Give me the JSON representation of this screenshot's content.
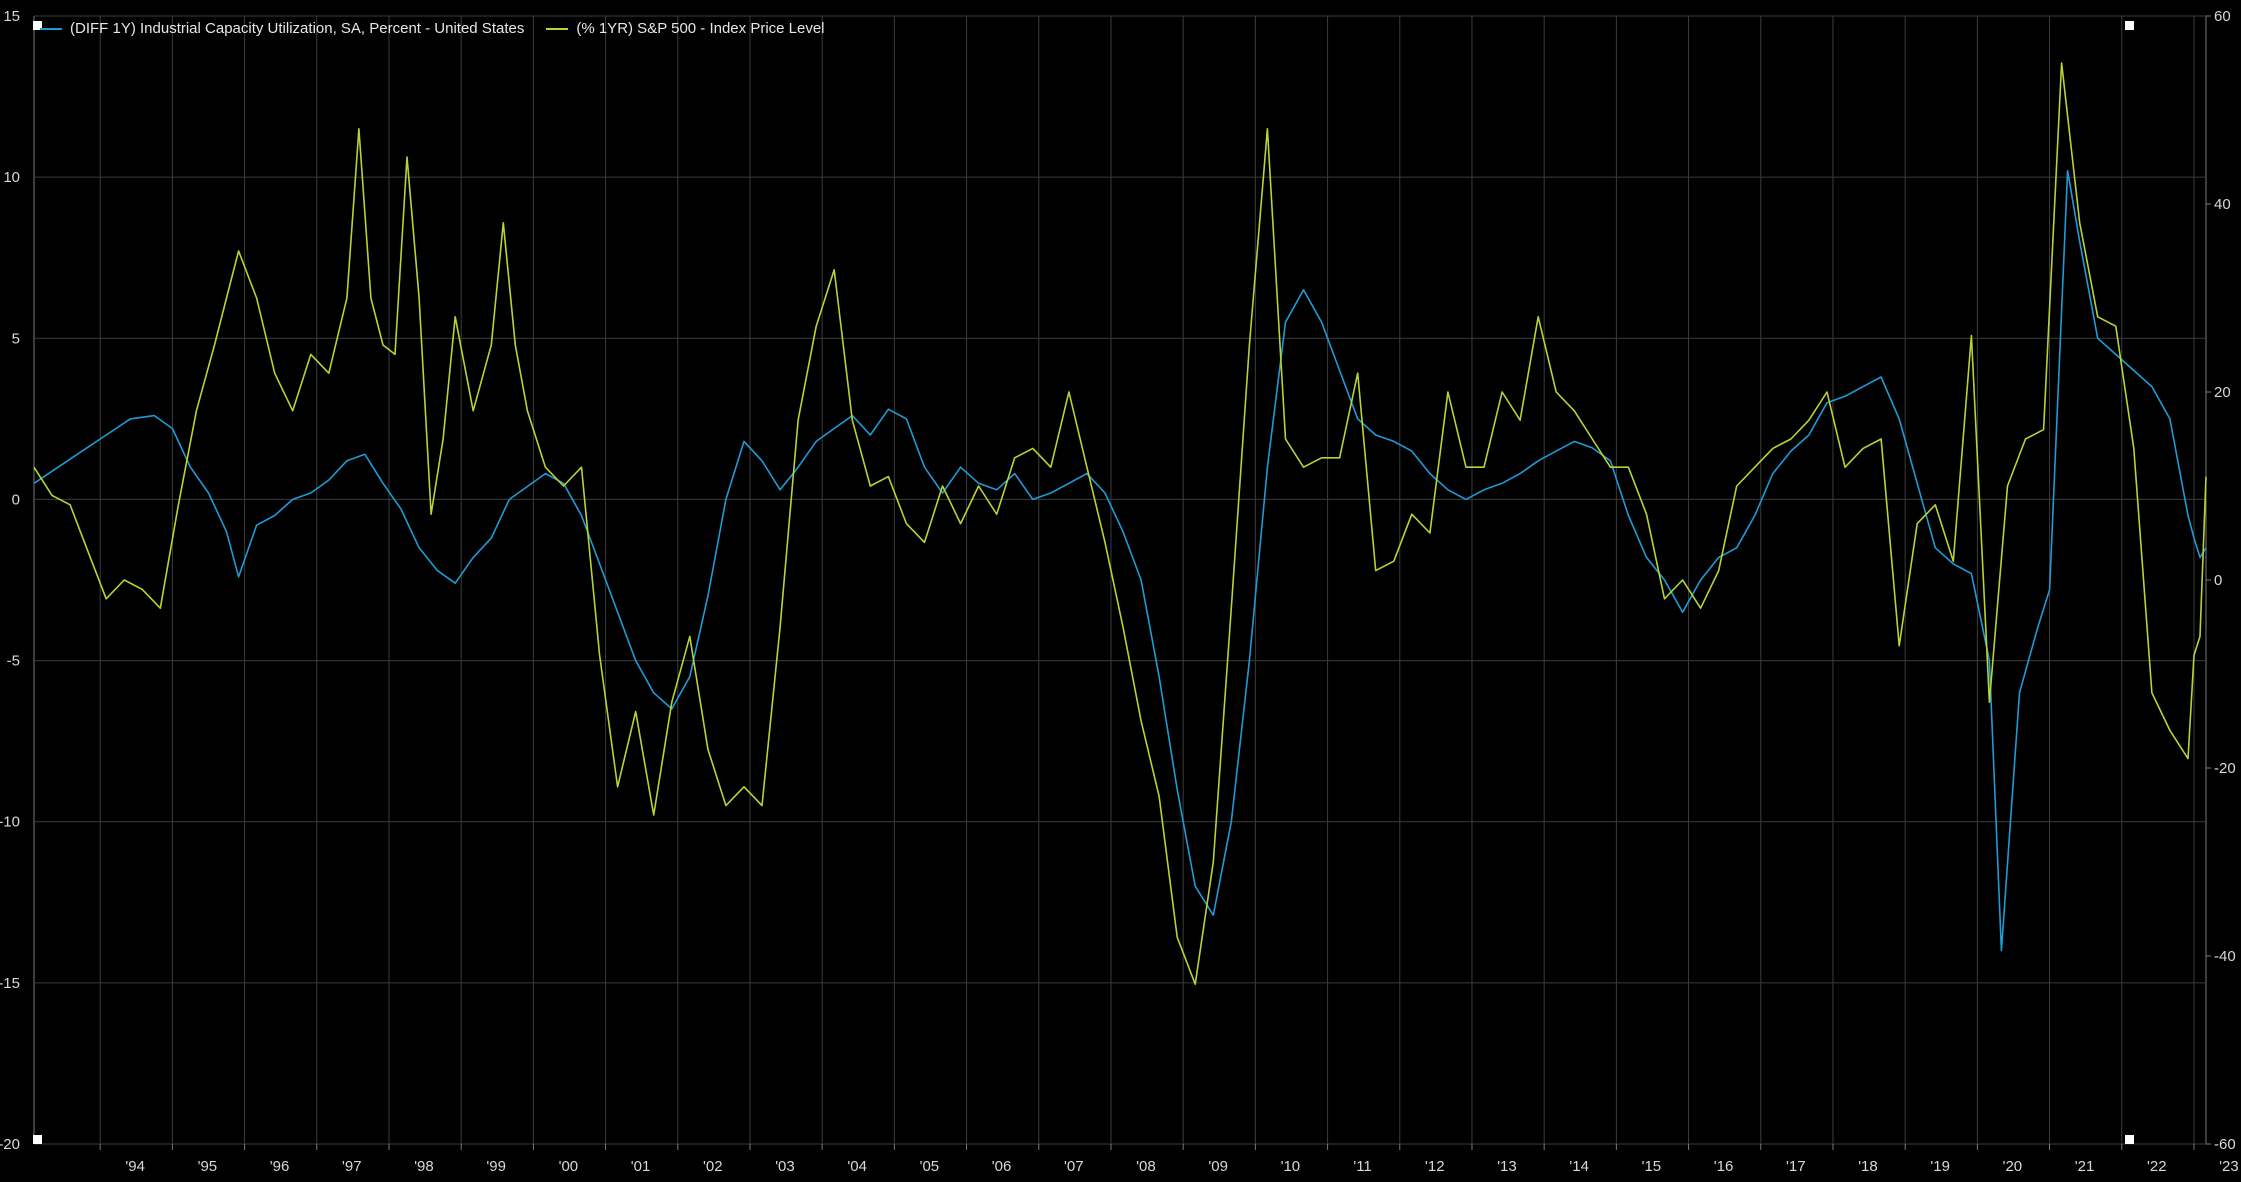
{
  "chart_data": {
    "type": "line",
    "title": "",
    "grid": true,
    "legend_placement": "top-left",
    "background": "#000000",
    "x_range": [
      "1993-02",
      "2023-03"
    ],
    "x_tick_labels": [
      "'94",
      "'95",
      "'96",
      "'97",
      "'98",
      "'99",
      "'00",
      "'01",
      "'02",
      "'03",
      "'04",
      "'05",
      "'06",
      "'07",
      "'08",
      "'09",
      "'10",
      "'11",
      "'12",
      "'13",
      "'14",
      "'15",
      "'16",
      "'17",
      "'18",
      "'19",
      "'20",
      "'21",
      "'22",
      "'23"
    ],
    "x_tick_years": [
      1994,
      1995,
      1996,
      1997,
      1998,
      1999,
      2000,
      2001,
      2002,
      2003,
      2004,
      2005,
      2006,
      2007,
      2008,
      2009,
      2010,
      2011,
      2012,
      2013,
      2014,
      2015,
      2016,
      2017,
      2018,
      2019,
      2020,
      2021,
      2022,
      2023
    ],
    "y_left": {
      "min": -20,
      "max": 15,
      "ticks": [
        15,
        10,
        5,
        0,
        -5,
        -10,
        -15,
        -20
      ],
      "tick_labels": [
        "15",
        "10",
        "5",
        "0",
        "-5",
        "-10",
        "-15",
        "-20"
      ]
    },
    "y_right": {
      "min": -60,
      "max": 60,
      "ticks": [
        60,
        40,
        20,
        0,
        -20,
        -40,
        -60
      ],
      "tick_labels": [
        "60",
        "40",
        "20",
        "0",
        "-20",
        "-40",
        "-60"
      ]
    },
    "series": [
      {
        "name": "(DIFF 1Y) Industrial Capacity Utilization, SA, Percent - United States",
        "axis": "left",
        "color": "#1e9bd7",
        "points": [
          [
            "1993-02",
            0.5
          ],
          [
            "1993-06",
            1.0
          ],
          [
            "1993-10",
            1.5
          ],
          [
            "1994-02",
            2.0
          ],
          [
            "1994-06",
            2.5
          ],
          [
            "1994-10",
            2.6
          ],
          [
            "1995-01",
            2.2
          ],
          [
            "1995-04",
            1.0
          ],
          [
            "1995-07",
            0.2
          ],
          [
            "1995-10",
            -1.0
          ],
          [
            "1995-12",
            -2.4
          ],
          [
            "1996-03",
            -0.8
          ],
          [
            "1996-06",
            -0.5
          ],
          [
            "1996-09",
            0.0
          ],
          [
            "1996-12",
            0.2
          ],
          [
            "1997-03",
            0.6
          ],
          [
            "1997-06",
            1.2
          ],
          [
            "1997-09",
            1.4
          ],
          [
            "1997-12",
            0.5
          ],
          [
            "1998-03",
            -0.3
          ],
          [
            "1998-06",
            -1.5
          ],
          [
            "1998-09",
            -2.2
          ],
          [
            "1998-12",
            -2.6
          ],
          [
            "1999-03",
            -1.8
          ],
          [
            "1999-06",
            -1.2
          ],
          [
            "1999-09",
            0.0
          ],
          [
            "1999-12",
            0.4
          ],
          [
            "2000-03",
            0.8
          ],
          [
            "2000-06",
            0.5
          ],
          [
            "2000-09",
            -0.5
          ],
          [
            "2000-12",
            -2.0
          ],
          [
            "2001-03",
            -3.5
          ],
          [
            "2001-06",
            -5.0
          ],
          [
            "2001-09",
            -6.0
          ],
          [
            "2001-12",
            -6.5
          ],
          [
            "2002-03",
            -5.5
          ],
          [
            "2002-06",
            -3.0
          ],
          [
            "2002-09",
            0.0
          ],
          [
            "2002-12",
            1.8
          ],
          [
            "2003-03",
            1.2
          ],
          [
            "2003-06",
            0.3
          ],
          [
            "2003-09",
            1.0
          ],
          [
            "2003-12",
            1.8
          ],
          [
            "2004-03",
            2.2
          ],
          [
            "2004-06",
            2.6
          ],
          [
            "2004-09",
            2.0
          ],
          [
            "2004-12",
            2.8
          ],
          [
            "2005-03",
            2.5
          ],
          [
            "2005-06",
            1.0
          ],
          [
            "2005-09",
            0.2
          ],
          [
            "2005-12",
            1.0
          ],
          [
            "2006-03",
            0.5
          ],
          [
            "2006-06",
            0.3
          ],
          [
            "2006-09",
            0.8
          ],
          [
            "2006-12",
            0.0
          ],
          [
            "2007-03",
            0.2
          ],
          [
            "2007-06",
            0.5
          ],
          [
            "2007-09",
            0.8
          ],
          [
            "2007-12",
            0.2
          ],
          [
            "2008-03",
            -1.0
          ],
          [
            "2008-06",
            -2.5
          ],
          [
            "2008-09",
            -5.5
          ],
          [
            "2008-12",
            -9.0
          ],
          [
            "2009-03",
            -12.0
          ],
          [
            "2009-06",
            -12.9
          ],
          [
            "2009-09",
            -10.0
          ],
          [
            "2009-12",
            -5.0
          ],
          [
            "2010-03",
            1.0
          ],
          [
            "2010-06",
            5.5
          ],
          [
            "2010-09",
            6.5
          ],
          [
            "2010-12",
            5.5
          ],
          [
            "2011-03",
            4.0
          ],
          [
            "2011-06",
            2.5
          ],
          [
            "2011-09",
            2.0
          ],
          [
            "2011-12",
            1.8
          ],
          [
            "2012-03",
            1.5
          ],
          [
            "2012-06",
            0.8
          ],
          [
            "2012-09",
            0.3
          ],
          [
            "2012-12",
            0.0
          ],
          [
            "2013-03",
            0.3
          ],
          [
            "2013-06",
            0.5
          ],
          [
            "2013-09",
            0.8
          ],
          [
            "2013-12",
            1.2
          ],
          [
            "2014-03",
            1.5
          ],
          [
            "2014-06",
            1.8
          ],
          [
            "2014-09",
            1.6
          ],
          [
            "2014-12",
            1.2
          ],
          [
            "2015-03",
            -0.5
          ],
          [
            "2015-06",
            -1.8
          ],
          [
            "2015-09",
            -2.5
          ],
          [
            "2015-12",
            -3.5
          ],
          [
            "2016-03",
            -2.5
          ],
          [
            "2016-06",
            -1.8
          ],
          [
            "2016-09",
            -1.5
          ],
          [
            "2016-12",
            -0.5
          ],
          [
            "2017-03",
            0.8
          ],
          [
            "2017-06",
            1.5
          ],
          [
            "2017-09",
            2.0
          ],
          [
            "2017-12",
            3.0
          ],
          [
            "2018-03",
            3.2
          ],
          [
            "2018-06",
            3.5
          ],
          [
            "2018-09",
            3.8
          ],
          [
            "2018-12",
            2.5
          ],
          [
            "2019-03",
            0.5
          ],
          [
            "2019-06",
            -1.5
          ],
          [
            "2019-09",
            -2.0
          ],
          [
            "2019-12",
            -2.3
          ],
          [
            "2020-03",
            -5.0
          ],
          [
            "2020-05",
            -14.0
          ],
          [
            "2020-08",
            -6.0
          ],
          [
            "2020-11",
            -4.0
          ],
          [
            "2021-01",
            -2.8
          ],
          [
            "2021-04",
            10.2
          ],
          [
            "2021-06",
            8.0
          ],
          [
            "2021-09",
            5.0
          ],
          [
            "2021-12",
            4.5
          ],
          [
            "2022-03",
            4.0
          ],
          [
            "2022-06",
            3.5
          ],
          [
            "2022-09",
            2.5
          ],
          [
            "2022-12",
            -0.5
          ],
          [
            "2023-01",
            -1.2
          ],
          [
            "2023-02",
            -1.8
          ],
          [
            "2023-03",
            -1.5
          ]
        ]
      },
      {
        "name": "(% 1YR) S&P 500 - Index Price Level",
        "axis": "right",
        "color": "#b8d432",
        "points": [
          [
            "1993-02",
            12
          ],
          [
            "1993-05",
            9
          ],
          [
            "1993-08",
            8
          ],
          [
            "1993-11",
            3
          ],
          [
            "1994-02",
            -2
          ],
          [
            "1994-05",
            0
          ],
          [
            "1994-08",
            -1
          ],
          [
            "1994-11",
            -3
          ],
          [
            "1995-02",
            8
          ],
          [
            "1995-05",
            18
          ],
          [
            "1995-08",
            25
          ],
          [
            "1995-10",
            30
          ],
          [
            "1995-12",
            35
          ],
          [
            "1996-03",
            30
          ],
          [
            "1996-06",
            22
          ],
          [
            "1996-09",
            18
          ],
          [
            "1996-12",
            24
          ],
          [
            "1997-03",
            22
          ],
          [
            "1997-06",
            30
          ],
          [
            "1997-08",
            48
          ],
          [
            "1997-10",
            30
          ],
          [
            "1997-12",
            25
          ],
          [
            "1998-02",
            24
          ],
          [
            "1998-04",
            45
          ],
          [
            "1998-06",
            30
          ],
          [
            "1998-08",
            7
          ],
          [
            "1998-10",
            15
          ],
          [
            "1998-12",
            28
          ],
          [
            "1999-03",
            18
          ],
          [
            "1999-06",
            25
          ],
          [
            "1999-08",
            38
          ],
          [
            "1999-10",
            25
          ],
          [
            "1999-12",
            18
          ],
          [
            "2000-03",
            12
          ],
          [
            "2000-06",
            10
          ],
          [
            "2000-09",
            12
          ],
          [
            "2000-12",
            -8
          ],
          [
            "2001-03",
            -22
          ],
          [
            "2001-06",
            -14
          ],
          [
            "2001-09",
            -25
          ],
          [
            "2001-12",
            -13
          ],
          [
            "2002-03",
            -6
          ],
          [
            "2002-06",
            -18
          ],
          [
            "2002-09",
            -24
          ],
          [
            "2002-12",
            -22
          ],
          [
            "2003-03",
            -24
          ],
          [
            "2003-06",
            -5
          ],
          [
            "2003-09",
            17
          ],
          [
            "2003-12",
            27
          ],
          [
            "2004-03",
            33
          ],
          [
            "2004-06",
            17
          ],
          [
            "2004-09",
            10
          ],
          [
            "2004-12",
            11
          ],
          [
            "2005-03",
            6
          ],
          [
            "2005-06",
            4
          ],
          [
            "2005-09",
            10
          ],
          [
            "2005-12",
            6
          ],
          [
            "2006-03",
            10
          ],
          [
            "2006-06",
            7
          ],
          [
            "2006-09",
            13
          ],
          [
            "2006-12",
            14
          ],
          [
            "2007-03",
            12
          ],
          [
            "2007-06",
            20
          ],
          [
            "2007-09",
            12
          ],
          [
            "2007-12",
            4
          ],
          [
            "2008-03",
            -5
          ],
          [
            "2008-06",
            -15
          ],
          [
            "2008-09",
            -23
          ],
          [
            "2008-12",
            -38
          ],
          [
            "2009-03",
            -43
          ],
          [
            "2009-06",
            -30
          ],
          [
            "2009-09",
            -3
          ],
          [
            "2009-12",
            25
          ],
          [
            "2010-03",
            48
          ],
          [
            "2010-06",
            15
          ],
          [
            "2010-09",
            12
          ],
          [
            "2010-12",
            13
          ],
          [
            "2011-03",
            13
          ],
          [
            "2011-06",
            22
          ],
          [
            "2011-09",
            1
          ],
          [
            "2011-12",
            2
          ],
          [
            "2012-03",
            7
          ],
          [
            "2012-06",
            5
          ],
          [
            "2012-09",
            20
          ],
          [
            "2012-12",
            12
          ],
          [
            "2013-03",
            12
          ],
          [
            "2013-06",
            20
          ],
          [
            "2013-09",
            17
          ],
          [
            "2013-12",
            28
          ],
          [
            "2014-03",
            20
          ],
          [
            "2014-06",
            18
          ],
          [
            "2014-09",
            15
          ],
          [
            "2014-12",
            12
          ],
          [
            "2015-03",
            12
          ],
          [
            "2015-06",
            7
          ],
          [
            "2015-09",
            -2
          ],
          [
            "2015-12",
            0
          ],
          [
            "2016-03",
            -3
          ],
          [
            "2016-06",
            1
          ],
          [
            "2016-09",
            10
          ],
          [
            "2016-12",
            12
          ],
          [
            "2017-03",
            14
          ],
          [
            "2017-06",
            15
          ],
          [
            "2017-09",
            17
          ],
          [
            "2017-12",
            20
          ],
          [
            "2018-03",
            12
          ],
          [
            "2018-06",
            14
          ],
          [
            "2018-09",
            15
          ],
          [
            "2018-12",
            -7
          ],
          [
            "2019-03",
            6
          ],
          [
            "2019-06",
            8
          ],
          [
            "2019-09",
            2
          ],
          [
            "2019-12",
            26
          ],
          [
            "2020-03",
            -13
          ],
          [
            "2020-06",
            10
          ],
          [
            "2020-09",
            15
          ],
          [
            "2020-12",
            16
          ],
          [
            "2021-03",
            55
          ],
          [
            "2021-06",
            38
          ],
          [
            "2021-09",
            28
          ],
          [
            "2021-12",
            27
          ],
          [
            "2022-03",
            14
          ],
          [
            "2022-06",
            -12
          ],
          [
            "2022-09",
            -16
          ],
          [
            "2022-12",
            -19
          ],
          [
            "2023-01",
            -8
          ],
          [
            "2023-02",
            -6
          ],
          [
            "2023-03",
            11
          ]
        ]
      }
    ]
  }
}
